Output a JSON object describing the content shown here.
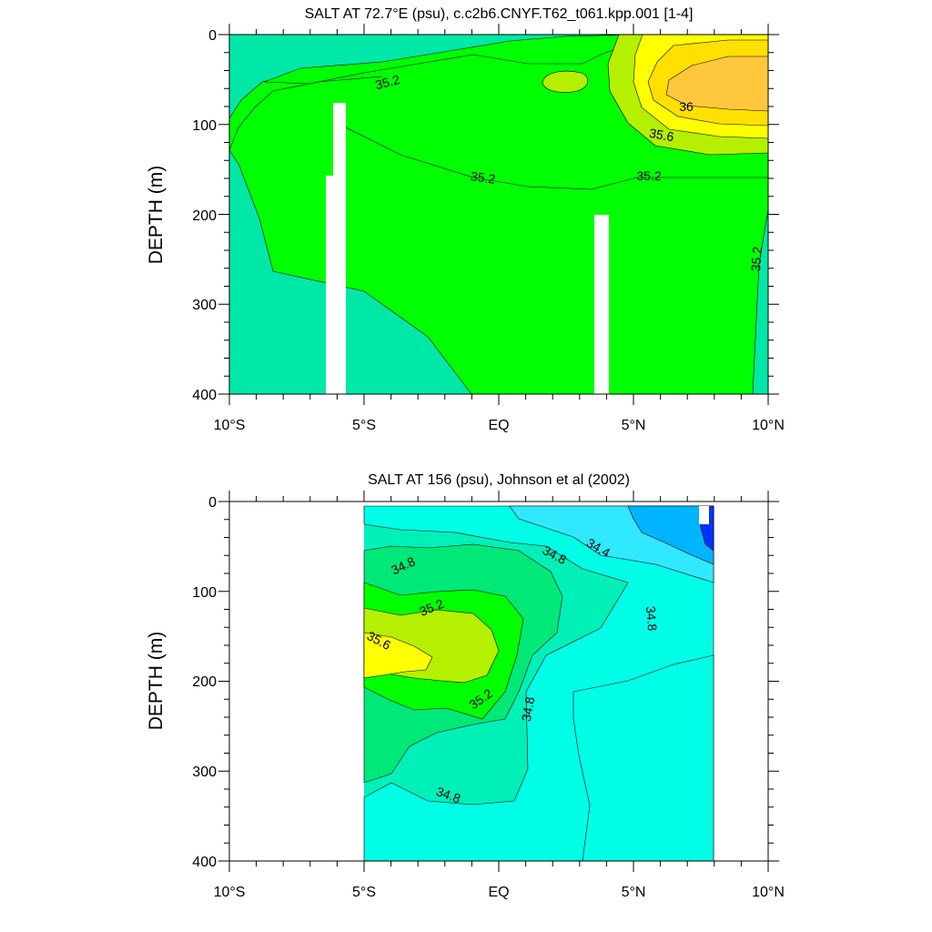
{
  "chart_data": [
    {
      "type": "contour",
      "title": "SALT AT  72.7°E (psu), c.c2b6.CNYF.T62_t061.kpp.001 [1-4]",
      "ylabel": "DEPTH (m)",
      "xlabel": "",
      "x_ticks": [
        "10°S",
        "5°S",
        "EQ",
        "5°N",
        "10°N"
      ],
      "x_range": [
        -10,
        10
      ],
      "y_ticks": [
        "0",
        "100",
        "200",
        "300",
        "400"
      ],
      "y_range": [
        0,
        400
      ],
      "y_inverted": true,
      "contour_interval": 0.2,
      "contour_labels": [
        "35.2",
        "36",
        "35.6",
        "35.2",
        "35.2",
        "35.2"
      ],
      "colors": {
        "35.0": "#00e8a8",
        "35.2": "#00ff00",
        "35.4": "#b4f000",
        "35.6": "#ffff00",
        "35.8": "#ffe000",
        "36.0": "#ffc83c"
      },
      "missing_columns": [
        {
          "lat_from": -6.4,
          "lat_to": -5.7,
          "depth_from": 155,
          "depth_to": 400
        },
        {
          "lat_from": -5.9,
          "lat_to": -5.5,
          "depth_from": 75,
          "depth_to": 400
        },
        {
          "lat_from": 3.6,
          "lat_to": 4.1,
          "depth_from": 200,
          "depth_to": 400
        }
      ]
    },
    {
      "type": "contour",
      "title": "SALT AT 156 (psu), Johnson et al (2002)",
      "ylabel": "DEPTH (m)",
      "xlabel": "",
      "x_ticks": [
        "10°S",
        "5°S",
        "EQ",
        "5°N",
        "10°N"
      ],
      "x_range": [
        -10,
        10
      ],
      "y_ticks": [
        "0",
        "100",
        "200",
        "300",
        "400"
      ],
      "y_range": [
        0,
        400
      ],
      "y_inverted": true,
      "data_extent": {
        "lat": [
          -5,
          8
        ],
        "depth": [
          5,
          400
        ]
      },
      "contour_interval": 0.2,
      "contour_labels": [
        "34.8",
        "34.8",
        "34.4",
        "35.2",
        "34.8",
        "35.6",
        "35.2",
        "34.8",
        "34.8"
      ],
      "colors": {
        "34.0": "#0032ff",
        "34.2": "#00b4ff",
        "34.4": "#30e8ff",
        "34.6": "#00ffe6",
        "34.8": "#00f0b8",
        "35.0": "#00e878",
        "35.2": "#00ff00",
        "35.4": "#b4f000",
        "35.6": "#ffff00"
      }
    }
  ]
}
